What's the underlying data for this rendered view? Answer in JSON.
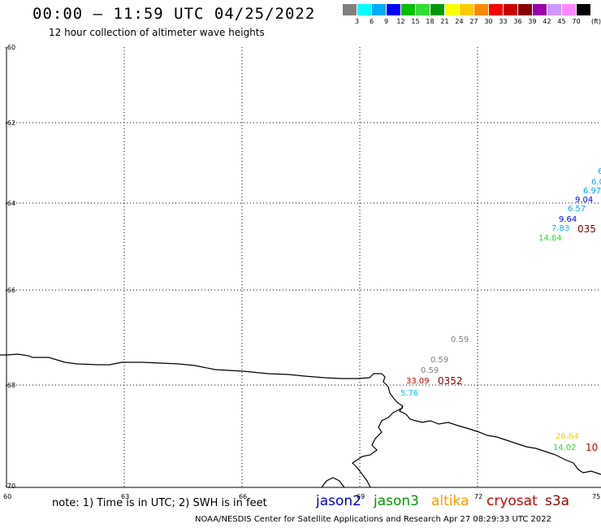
{
  "title": "00:00 – 11:59 UTC 04/25/2022",
  "subtitle": "12 hour collection of altimeter wave heights",
  "legend": {
    "colors": [
      "#808080",
      "#00ffff",
      "#00aaff",
      "#0000ff",
      "#00c000",
      "#33dd33",
      "#009900",
      "#ffff00",
      "#ffcc00",
      "#ff8800",
      "#ff0000",
      "#cc0000",
      "#880000",
      "#9900aa",
      "#cc99ff",
      "#ff88ff",
      "#000000"
    ],
    "labels": [
      "3",
      "6",
      "9",
      "12",
      "15",
      "18",
      "21",
      "24",
      "27",
      "30",
      "33",
      "36",
      "39",
      "42",
      "45",
      "70"
    ],
    "unit": "(ft)"
  },
  "axes": {
    "y_labels": [
      "-60",
      "-62",
      "-64",
      "-66",
      "-68",
      "-70"
    ],
    "x_labels": [
      "60",
      "63",
      "66",
      "69",
      "72",
      "75"
    ]
  },
  "observations": [
    {
      "text": "6.",
      "color": "#00aaff"
    },
    {
      "text": "6.0",
      "color": "#00aaff"
    },
    {
      "text": "6.97",
      "color": "#00aaff"
    },
    {
      "text": "9.04",
      "color": "#0000ff"
    },
    {
      "text": "6.57",
      "color": "#00aaff"
    },
    {
      "text": "9.64",
      "color": "#0000ff"
    },
    {
      "text": "7.83",
      "color": "#00aaff"
    },
    {
      "text": "14.84",
      "color": "#33dd33"
    },
    {
      "text": "0.59",
      "color": "#808080"
    },
    {
      "text": "0.59",
      "color": "#808080"
    },
    {
      "text": "0.59",
      "color": "#808080"
    },
    {
      "text": "33.09",
      "color": "#cc0000"
    },
    {
      "text": "5.76",
      "color": "#00ccff"
    },
    {
      "text": "26.64",
      "color": "#ffcc00"
    },
    {
      "text": "14.02",
      "color": "#33dd33"
    }
  ],
  "pass_times": [
    {
      "text": "035",
      "color": "#880000"
    },
    {
      "text": "0352",
      "color": "#880000"
    },
    {
      "text": "10",
      "color": "#cc0000"
    }
  ],
  "footer": {
    "note": "note: 1) Time is in UTC; 2) SWH is in feet",
    "satellites": [
      {
        "name": "jason2",
        "color": "#0000cc"
      },
      {
        "name": "jason3",
        "color": "#009900"
      },
      {
        "name": "altika",
        "color": "#ff9900"
      },
      {
        "name": "cryosat",
        "color": "#cc0000"
      },
      {
        "name": "s3a",
        "color": "#990000"
      }
    ],
    "credit": "NOAA/NESDIS Center for Satellite Applications and Research    Apr 27 08:29:33 UTC 2022"
  }
}
